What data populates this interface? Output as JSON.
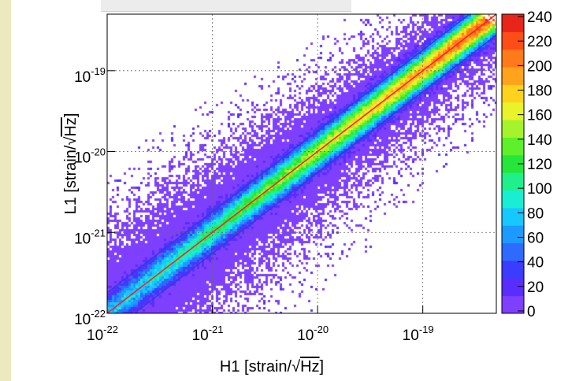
{
  "colors": {
    "background": "#ffffff",
    "left_strip": "#ece8bf",
    "fit_line": "#ff2020",
    "band_lines": "#2a3fd0",
    "grid": "#666666",
    "palette": [
      "#ffffff",
      "#7f3fff",
      "#5a2dff",
      "#3a3cff",
      "#2f6aff",
      "#1c9aff",
      "#17c7ff",
      "#19eed2",
      "#1ff08a",
      "#27e63b",
      "#5ef02a",
      "#a5f32a",
      "#e8f32a",
      "#ffd21e",
      "#ffa31c",
      "#ff7a1a",
      "#ff4d17",
      "#e8251a"
    ]
  },
  "titlebox_text": "",
  "chart_data": {
    "type": "heatmap",
    "title": "",
    "xlabel_prefix": "H1 [strain/",
    "xlabel_sqrt": "Hz",
    "xlabel_suffix": "]",
    "ylabel_prefix": "L1 [strain/",
    "ylabel_sqrt": "Hz",
    "ylabel_suffix": "]",
    "xscale": "log",
    "yscale": "log",
    "xlim": [
      1e-22,
      5e-19
    ],
    "ylim": [
      1e-22,
      5e-19
    ],
    "x_ticks": [
      {
        "mant": "10",
        "exp": "-22",
        "value": 1e-22
      },
      {
        "mant": "10",
        "exp": "-21",
        "value": 1e-21
      },
      {
        "mant": "10",
        "exp": "-20",
        "value": 1e-20
      },
      {
        "mant": "10",
        "exp": "-19",
        "value": 1e-19
      }
    ],
    "y_ticks": [
      {
        "mant": "10",
        "exp": "-22",
        "value": 1e-22
      },
      {
        "mant": "10",
        "exp": "-21",
        "value": 1e-21
      },
      {
        "mant": "10",
        "exp": "-20",
        "value": 1e-20
      },
      {
        "mant": "10",
        "exp": "-19",
        "value": 1e-19
      }
    ],
    "grid": true,
    "fit_line": {
      "slope": 1,
      "intercept_factor": 1
    },
    "band_lines": [
      {
        "factor": 1.8
      },
      {
        "factor": 0.55
      }
    ],
    "colorbar": {
      "min": 0,
      "max": 240,
      "labels": [
        "240",
        "220",
        "200",
        "180",
        "160",
        "140",
        "120",
        "100",
        "80",
        "60",
        "40",
        "20",
        "0"
      ]
    }
  }
}
